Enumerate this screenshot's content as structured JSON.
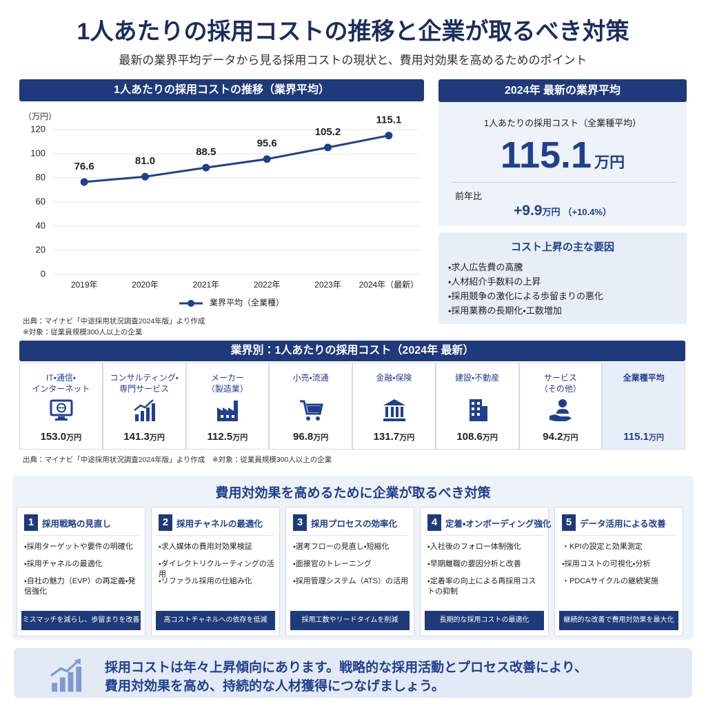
{
  "header": {
    "title": "1人あたりの採用コストの推移と企業が取るべき対策",
    "subtitle": "最新の業界平均データから見る採用コストの現状と、費用対効果を高めるためのポイント"
  },
  "chart_panel": {
    "heading": "1人あたりの採用コストの推移（業界平均）",
    "source": "出典：マイナビ「中途採用状況調査2024年版」より作成",
    "note": "※対象：従業員規模300人以上の企業"
  },
  "chart_data": {
    "type": "line",
    "y_label": "（万円）",
    "categories": [
      "2019年",
      "2020年",
      "2021年",
      "2022年",
      "2023年",
      "2024年（最新）"
    ],
    "series": [
      {
        "name": "業界平均（全業種）",
        "color": "#1f3f8f",
        "values": [
          76.6,
          81.0,
          88.5,
          95.6,
          105.2,
          115.1
        ],
        "value_labels": [
          "76.6",
          "81.0",
          "88.5",
          "95.6",
          "105.2",
          "115.1"
        ]
      }
    ],
    "ylim": [
      0,
      120
    ],
    "yticks": [
      0,
      20,
      40,
      60,
      80,
      100,
      120
    ],
    "grid": true,
    "legend": "bottom"
  },
  "latest": {
    "heading": "2024年 最新の業界平均",
    "label": "1人あたりの採用コスト（全業種平均）",
    "value": "115.1",
    "unit": "万円",
    "yoy_label": "前年比",
    "yoy_value": "+9.9",
    "yoy_unit": "万円",
    "yoy_pct": "（+10.4%）"
  },
  "factors": {
    "heading": "コスト上昇の主な要因",
    "items": [
      "・求人広告費の高騰",
      "・人材紹介手数料の上昇",
      "・採用競争の激化による歩留まりの悪化",
      "・採用業務の長期化・工数増加"
    ]
  },
  "industry": {
    "heading": "業界別：1人あたりの採用コスト（2024年 最新）",
    "unit": "万円",
    "items": [
      {
        "name": [
          "IT・通信・",
          "インターネット"
        ],
        "cost": "153.0"
      },
      {
        "name": [
          "コンサルティング・",
          "専門サービス"
        ],
        "cost": "141.3"
      },
      {
        "name": [
          "メーカー",
          "（製造業）"
        ],
        "cost": "112.5"
      },
      {
        "name": [
          "小売・流通"
        ],
        "cost": "96.8"
      },
      {
        "name": [
          "金融・保険"
        ],
        "cost": "131.7"
      },
      {
        "name": [
          "建設・不動産"
        ],
        "cost": "108.6"
      },
      {
        "name": [
          "サービス",
          "（その他）"
        ],
        "cost": "94.2"
      },
      {
        "name": [
          "全業種平均"
        ],
        "cost": "115.1"
      }
    ],
    "source": "出典：マイナビ「中途採用状況調査2024年版」より作成　※対象：従業員規模300人以上の企業"
  },
  "measures": {
    "heading": "費用対効果を高めるために企業が取るべき対策",
    "items": [
      {
        "no": "1",
        "title": "採用戦略の見直し",
        "points": [
          "・採用ターゲットや要件の明確化",
          "・採用チャネルの最適化",
          "・自社の魅力（EVP）の再定義・発信強化"
        ],
        "footer": "ミスマッチを減らし、歩留まりを改善"
      },
      {
        "no": "2",
        "title": "採用チャネルの最適化",
        "points": [
          "・求人媒体の費用対効果検証",
          "・ダイレクトリクルーティングの活用",
          "・リファラル採用の仕組み化"
        ],
        "footer": "高コストチャネルへの依存を低減"
      },
      {
        "no": "3",
        "title": "採用プロセスの効率化",
        "points": [
          "・選考フローの見直し・短縮化",
          "・面接官のトレーニング",
          "・採用管理システム（ATS）の活用"
        ],
        "footer": "採用工数やリードタイムを削減"
      },
      {
        "no": "4",
        "title": "定着・オンボーディング強化",
        "points": [
          "・入社後のフォロー体制強化",
          "・早期離職の要因分析と改善",
          "・定着率の向上による再採用コストの抑制"
        ],
        "footer": "長期的な採用コストの最適化"
      },
      {
        "no": "5",
        "title": "データ活用による改善",
        "points": [
          "・KPIの設定と効果測定",
          "・採用コストの可視化・分析",
          "・PDCAサイクルの継続実施"
        ],
        "footer": "継続的な改善で費用対効果を最大化"
      }
    ]
  },
  "conclusion": {
    "lines": [
      "採用コストは年々上昇傾向にあります。戦略的な採用活動とプロセス改善により、",
      "費用対効果を高め、持続的な人材獲得につなげましょう。"
    ]
  }
}
